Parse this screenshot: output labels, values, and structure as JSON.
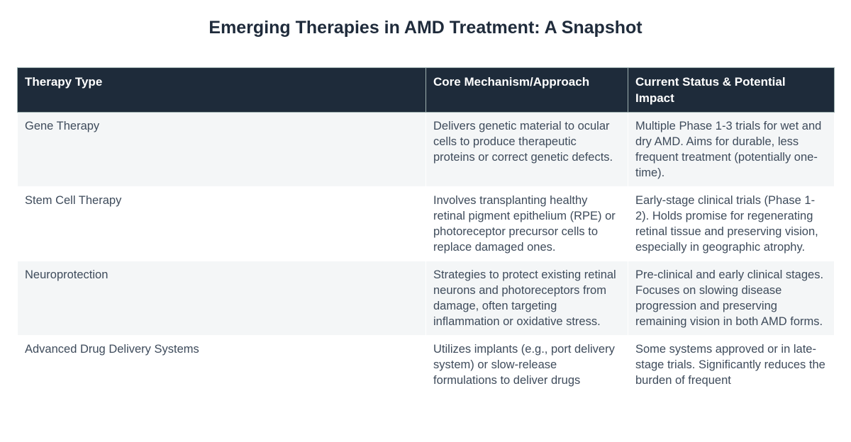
{
  "page": {
    "title": "Emerging Therapies in AMD Treatment: A Snapshot"
  },
  "colors": {
    "header_bg": "#1e2b3a",
    "header_text": "#ffffff",
    "header_border": "#9db0af",
    "body_text": "#3e4b5b",
    "stripe_row_bg": "#f4f6f7",
    "title_text": "#1f2b3b",
    "page_bg": "#ffffff"
  },
  "table": {
    "columns": [
      "Therapy Type",
      "Core Mechanism/Approach",
      "Current Status & Potential Impact"
    ],
    "rows": [
      {
        "therapy": "Gene Therapy",
        "mechanism": "Delivers genetic material to ocular cells to produce therapeutic proteins or correct genetic defects.",
        "status": "Multiple Phase 1-3 trials for wet and dry AMD. Aims for durable, less frequent treatment (potentially one-time)."
      },
      {
        "therapy": "Stem Cell Therapy",
        "mechanism": "Involves transplanting healthy retinal pigment epithelium (RPE) or photoreceptor precursor cells to replace damaged ones.",
        "status": "Early-stage clinical trials (Phase 1-2). Holds promise for regenerating retinal tissue and preserving vision, especially in geographic atrophy."
      },
      {
        "therapy": "Neuroprotection",
        "mechanism": "Strategies to protect existing retinal neurons and photoreceptors from damage, often targeting inflammation or oxidative stress.",
        "status": "Pre-clinical and early clinical stages. Focuses on slowing disease progression and preserving remaining vision in both AMD forms."
      },
      {
        "therapy": "Advanced Drug Delivery Systems",
        "mechanism": "Utilizes implants (e.g., port delivery system) or slow-release formulations to deliver drugs",
        "status": "Some systems approved or in late-stage trials. Significantly reduces the burden of frequent"
      }
    ]
  }
}
